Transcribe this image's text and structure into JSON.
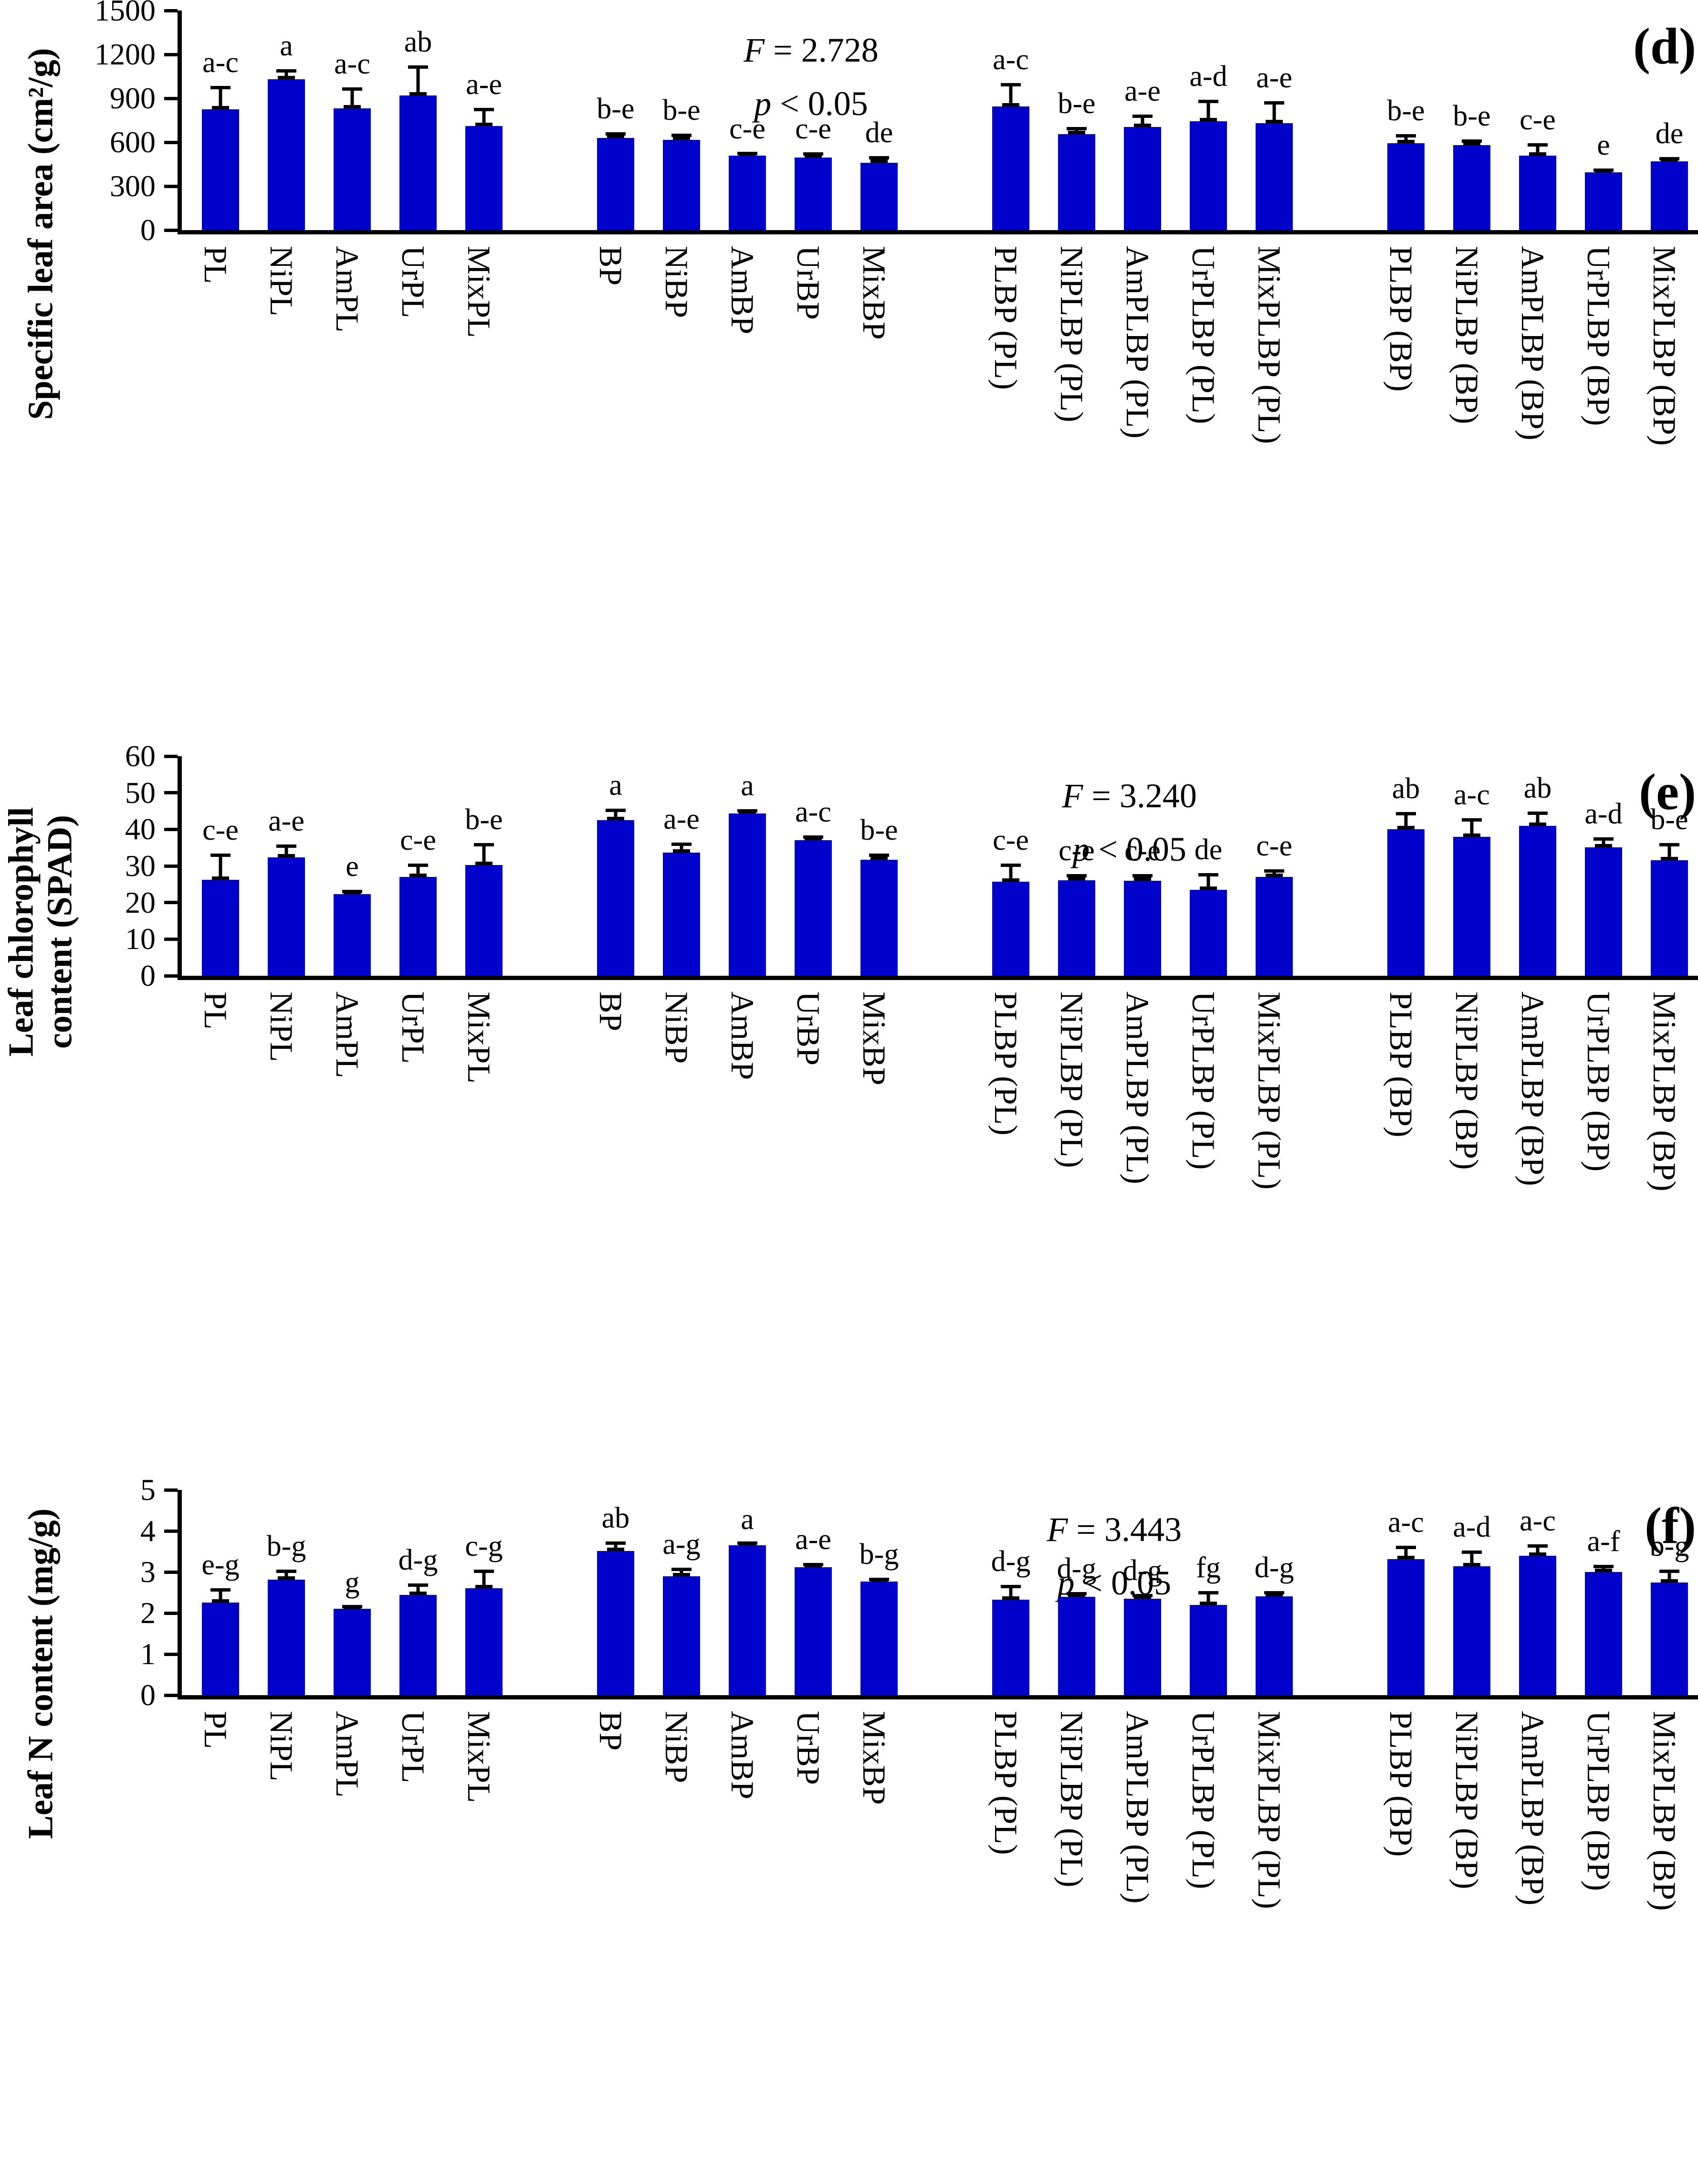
{
  "figure": {
    "bar_color": "#0101CC",
    "error_bar_color": "#000000",
    "axis_color": "#000000",
    "group_size": 5
  },
  "chart_data": [
    {
      "type": "bar",
      "panel_label": "(d)",
      "ylabel": "Specific leaf area (cm²/g)",
      "ylabel_lines": [
        "Specific leaf area (cm²/g)"
      ],
      "stats": {
        "f_name": "F",
        "f_rest": " = 2.728",
        "p_name": "p",
        "p_rest": " < 0.05"
      },
      "ylim": [
        0,
        1500
      ],
      "yticks": [
        0,
        300,
        600,
        900,
        1200,
        1500
      ],
      "categories": [
        "PL",
        "NiPL",
        "AmPL",
        "UrPL",
        "MixPL",
        "BP",
        "NiBP",
        "AmBP",
        "UrBP",
        "MixBP",
        "PLBP (PL)",
        "NiPLBP (PL)",
        "AmPLBP (PL)",
        "UrPLBP (PL)",
        "MixPLBP (PL)",
        "PLBP (BP)",
        "NiPLBP (BP)",
        "AmPLBP (BP)",
        "UrPLBP (BP)",
        "MixPLBP (BP)"
      ],
      "values": [
        825,
        1030,
        830,
        920,
        710,
        630,
        615,
        510,
        495,
        460,
        845,
        655,
        705,
        745,
        730,
        595,
        580,
        510,
        395,
        470
      ],
      "errors": [
        160,
        70,
        145,
        205,
        125,
        40,
        45,
        20,
        35,
        45,
        160,
        50,
        85,
        145,
        150,
        60,
        40,
        85,
        25,
        30
      ],
      "sig_letters": [
        "a-c",
        "a",
        "a-c",
        "ab",
        "a-e",
        "b-e",
        "b-e",
        "c-e",
        "c-e",
        "de",
        "a-c",
        "b-e",
        "a-e",
        "a-d",
        "a-e",
        "b-e",
        "b-e",
        "c-e",
        "e",
        "de"
      ]
    },
    {
      "type": "bar",
      "panel_label": "(e)",
      "ylabel": "Leaf chlorophyll content (SPAD)",
      "ylabel_lines": [
        "Leaf chlorophyll",
        "content (SPAD)"
      ],
      "stats": {
        "f_name": "F",
        "f_rest": " = 3.240",
        "p_name": "p",
        "p_rest": " < 0.05"
      },
      "ylim": [
        0,
        60
      ],
      "yticks": [
        0,
        10,
        20,
        30,
        40,
        50,
        60
      ],
      "categories": [
        "PL",
        "NiPL",
        "AmPL",
        "UrPL",
        "MixPL",
        "BP",
        "NiBP",
        "AmBP",
        "UrBP",
        "MixBP",
        "PLBP (PL)",
        "NiPLBP (PL)",
        "AmPLBP (PL)",
        "UrPLBP (PL)",
        "MixPLBP (PL)",
        "PLBP (BP)",
        "NiPLBP (BP)",
        "AmPLBP (BP)",
        "UrPLBP (BP)",
        "MixPLBP (BP)"
      ],
      "values": [
        26.2,
        32.3,
        22.3,
        27,
        30.3,
        42.5,
        33.7,
        44.4,
        37,
        31.7,
        25.7,
        26.1,
        26,
        23.5,
        27,
        40.1,
        37.9,
        41,
        35.1,
        31.6
      ],
      "errors": [
        7.2,
        3.6,
        1.2,
        3.7,
        6,
        3.1,
        2.7,
        1.1,
        1.3,
        1.7,
        5,
        1.7,
        1.8,
        4.5,
        2.1,
        4.6,
        5.1,
        3.9,
        2.7,
        4.7
      ],
      "sig_letters": [
        "c-e",
        "a-e",
        "e",
        "c-e",
        "b-e",
        "a",
        "a-e",
        "a",
        "a-c",
        "b-e",
        "c-e",
        "c-e",
        "c-e",
        "de",
        "c-e",
        "ab",
        "a-c",
        "ab",
        "a-d",
        "b-e"
      ]
    },
    {
      "type": "bar",
      "panel_label": "(f)",
      "ylabel": "Leaf N content (mg/g)",
      "ylabel_lines": [
        "Leaf N content (mg/g)"
      ],
      "stats": {
        "f_name": "F",
        "f_rest": " = 3.443",
        "p_name": "p",
        "p_rest": " < 0.05"
      },
      "ylim": [
        0,
        5
      ],
      "yticks": [
        0,
        1,
        2,
        3,
        4,
        5
      ],
      "categories": [
        "PL",
        "NiPL",
        "AmPL",
        "UrPL",
        "MixPL",
        "BP",
        "NiBP",
        "AmBP",
        "UrBP",
        "MixBP",
        "PLBP (PL)",
        "NiPLBP (PL)",
        "AmPLBP (PL)",
        "UrPLBP (PL)",
        "MixPLBP (PL)",
        "PLBP (BP)",
        "NiPLBP (BP)",
        "AmPLBP (BP)",
        "UrPLBP (BP)",
        "MixPLBP (BP)"
      ],
      "values": [
        2.26,
        2.81,
        2.11,
        2.44,
        2.61,
        3.51,
        2.89,
        3.65,
        3.12,
        2.77,
        2.32,
        2.39,
        2.35,
        2.2,
        2.41,
        3.31,
        3.14,
        3.39,
        3,
        2.75
      ],
      "errors": [
        0.34,
        0.25,
        0.06,
        0.28,
        0.45,
        0.23,
        0.22,
        0.06,
        0.1,
        0.09,
        0.37,
        0.12,
        0.12,
        0.33,
        0.12,
        0.33,
        0.38,
        0.28,
        0.17,
        0.31
      ],
      "sig_letters": [
        "e-g",
        "b-g",
        "g",
        "d-g",
        "c-g",
        "ab",
        "a-g",
        "a",
        "a-e",
        "b-g",
        "d-g",
        "d-g",
        "d-g",
        "fg",
        "d-g",
        "a-c",
        "a-d",
        "a-c",
        "a-f",
        "b-g"
      ]
    }
  ]
}
